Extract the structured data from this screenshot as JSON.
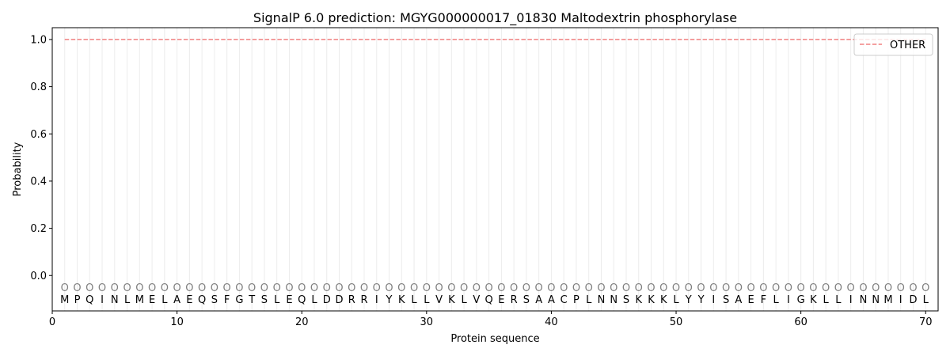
{
  "chart_data": {
    "type": "line",
    "title": "SignalP 6.0 prediction: MGYG000000017_01830 Maltodextrin phosphorylase",
    "xlabel": "Protein sequence",
    "ylabel": "Probability",
    "xlim": [
      0,
      71
    ],
    "ylim": [
      -0.15,
      1.05
    ],
    "x_ticks": [
      0,
      10,
      20,
      30,
      40,
      50,
      60,
      70
    ],
    "y_ticks": [
      0.0,
      0.2,
      0.4,
      0.6,
      0.8,
      1.0
    ],
    "x_tick_labels": [
      "0",
      "10",
      "20",
      "30",
      "40",
      "50",
      "60",
      "70"
    ],
    "y_tick_labels": [
      "0.0",
      "0.2",
      "0.4",
      "0.6",
      "0.8",
      "1.0"
    ],
    "sequence": [
      "M",
      "P",
      "Q",
      "I",
      "N",
      "L",
      "M",
      "E",
      "L",
      "A",
      "E",
      "Q",
      "S",
      "F",
      "G",
      "T",
      "S",
      "L",
      "E",
      "Q",
      "L",
      "D",
      "D",
      "R",
      "R",
      "I",
      "Y",
      "K",
      "L",
      "L",
      "V",
      "K",
      "L",
      "V",
      "Q",
      "E",
      "R",
      "S",
      "A",
      "A",
      "C",
      "P",
      "L",
      "N",
      "N",
      "S",
      "K",
      "K",
      "K",
      "L",
      "Y",
      "Y",
      "I",
      "S",
      "A",
      "E",
      "F",
      "L",
      "I",
      "G",
      "K",
      "L",
      "L",
      "I",
      "N",
      "N",
      "M",
      "I",
      "D",
      "L"
    ],
    "predicted_labels": [
      "O",
      "O",
      "O",
      "O",
      "O",
      "O",
      "O",
      "O",
      "O",
      "O",
      "O",
      "O",
      "O",
      "O",
      "O",
      "O",
      "O",
      "O",
      "O",
      "O",
      "O",
      "O",
      "O",
      "O",
      "O",
      "O",
      "O",
      "O",
      "O",
      "O",
      "O",
      "O",
      "O",
      "O",
      "O",
      "O",
      "O",
      "O",
      "O",
      "O",
      "O",
      "O",
      "O",
      "O",
      "O",
      "O",
      "O",
      "O",
      "O",
      "O",
      "O",
      "O",
      "O",
      "O",
      "O",
      "O",
      "O",
      "O",
      "O",
      "O",
      "O",
      "O",
      "O",
      "O",
      "O",
      "O",
      "O",
      "O",
      "O",
      "O"
    ],
    "series": [
      {
        "name": "OTHER",
        "color": "#f08080",
        "style": "dashed",
        "x": [
          1,
          70
        ],
        "values": [
          1.0,
          1.0
        ]
      }
    ],
    "legend_position": "top-right",
    "grid": "vertical lines at each residue",
    "grid_color": "#ececec",
    "label_color": "#7f7f7f"
  }
}
